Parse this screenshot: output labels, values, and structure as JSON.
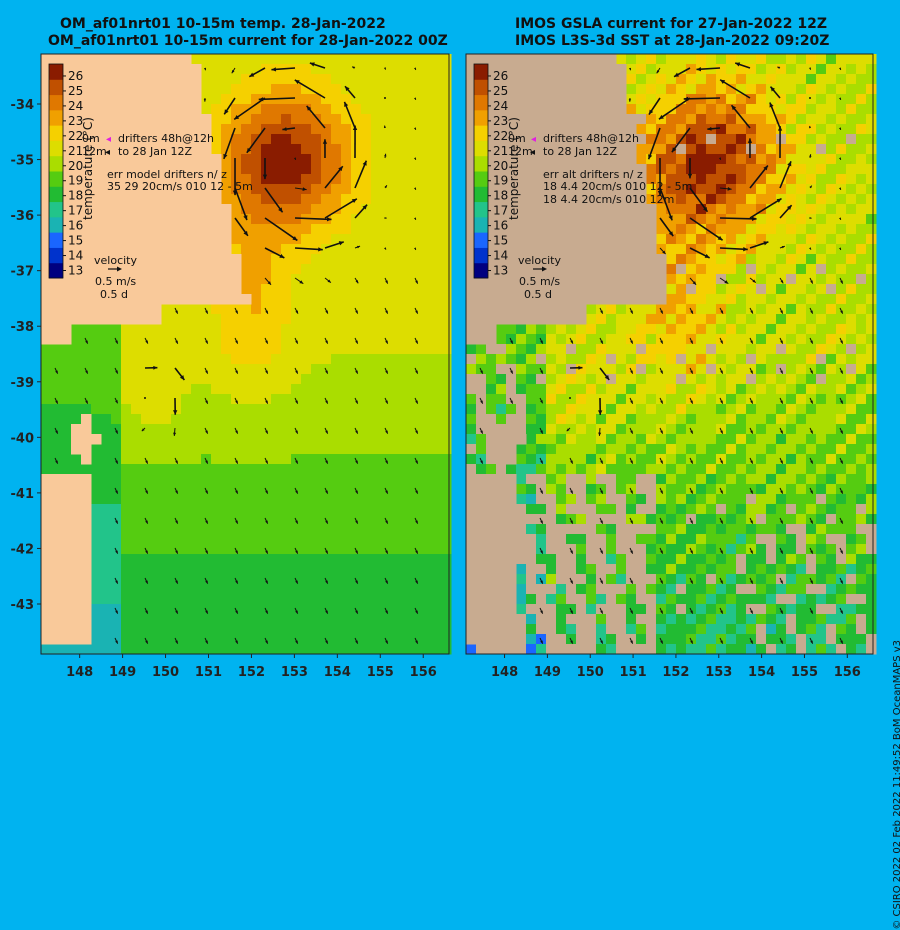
{
  "left_panel": {
    "title_line1": "OM_af01nrt01 10-15m temp. 28-Jan-2022",
    "title_line2": "OM_af01nrt01 10-15m current for 28-Jan-2022 00Z",
    "legend_drifter1": "drifters 48h@12h",
    "legend_drifter2": "to 28 Jan 12Z",
    "legend_depth1": "0m",
    "legend_depth2": "12m",
    "err_title": "err model drifters n/ z",
    "err_line1": "35 29 20cm/s 010 12 - 5m",
    "err_line2": "",
    "colorbar_label": "temperature (°C)",
    "velocity_label": "velocity",
    "velocity_scale": "0.5 m/s",
    "velocity_days": "0.5 d"
  },
  "right_panel": {
    "title_line1": "IMOS GSLA current for 27-Jan-2022 12Z",
    "title_line2": "IMOS L3S-3d SST at 28-Jan-2022 09:20Z",
    "legend_drifter1": "drifters 48h@12h",
    "legend_drifter2": "to 28 Jan 12Z",
    "legend_depth1": "0m",
    "legend_depth2": "12m",
    "err_title": "err alt drifters n/ z",
    "err_line1": "18 4.4 20cm/s 010 12 - 5m",
    "err_line2": "18 4.4 20cm/s 010 12m",
    "colorbar_label": "temperature (°C)",
    "velocity_label": "velocity",
    "velocity_scale": "0.5 m/s",
    "velocity_days": "0.5 d"
  },
  "side_credit": "© CSIRO 2022   02 Feb 2022 11:49:52 BoM OceanMAPS v3",
  "axes": {
    "lon_ticks": [
      148,
      149,
      150,
      151,
      152,
      153,
      154,
      155,
      156
    ],
    "lat_ticks": [
      -34,
      -35,
      -36,
      -37,
      -38,
      -39,
      -40,
      -41,
      -42,
      -43
    ],
    "lon_range": [
      147.1,
      156.6
    ],
    "lat_range": [
      -43.9,
      -33.1
    ]
  },
  "colorbar": {
    "ticks": [
      26,
      25,
      24,
      23,
      22,
      21,
      20,
      19,
      18,
      17,
      16,
      15,
      14,
      13
    ],
    "range": [
      12.5,
      26.8
    ],
    "colors": [
      "#000080",
      "#0033cc",
      "#1a66ff",
      "#1ab3b3",
      "#22c48a",
      "#22bb33",
      "#55cc11",
      "#aadd00",
      "#dddd00",
      "#f5d000",
      "#f0a000",
      "#e07800",
      "#c05000",
      "#8a1c00"
    ]
  },
  "colors": {
    "land": "#f9c99a",
    "no_data": "#c8ab90",
    "background": "#00b3f0"
  }
}
